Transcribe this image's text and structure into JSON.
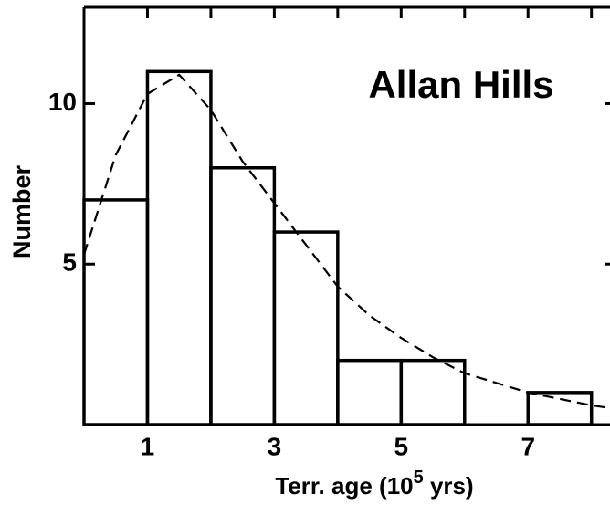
{
  "chart_data": {
    "type": "histogram",
    "annotation": "Allan Hills",
    "xlabel": [
      "Terr. age (10",
      "5",
      " yrs)"
    ],
    "ylabel": "Number",
    "bins": [
      0,
      1,
      2,
      3,
      4,
      5,
      6,
      7,
      8
    ],
    "values": [
      7,
      11,
      8,
      6,
      2,
      2,
      0,
      1
    ],
    "color": "#000000",
    "curve": {
      "x": [
        0,
        0.5,
        1,
        1.5,
        2,
        2.5,
        3,
        3.5,
        4,
        4.5,
        5,
        5.5,
        6,
        6.5,
        7,
        7.5,
        8,
        8.35
      ],
      "y": [
        5.3,
        8.4,
        10.3,
        10.9,
        9.8,
        8.2,
        6.9,
        5.6,
        4.3,
        3.4,
        2.7,
        2.1,
        1.6,
        1.3,
        1.0,
        0.8,
        0.6,
        0.5
      ]
    },
    "xlim": [
      0,
      8.35
    ],
    "ylim": [
      0,
      13
    ],
    "xticks": [
      1,
      3,
      5,
      7
    ],
    "xminor_ticks": [
      2,
      4,
      6,
      8
    ],
    "yticks": [
      5,
      10
    ]
  }
}
